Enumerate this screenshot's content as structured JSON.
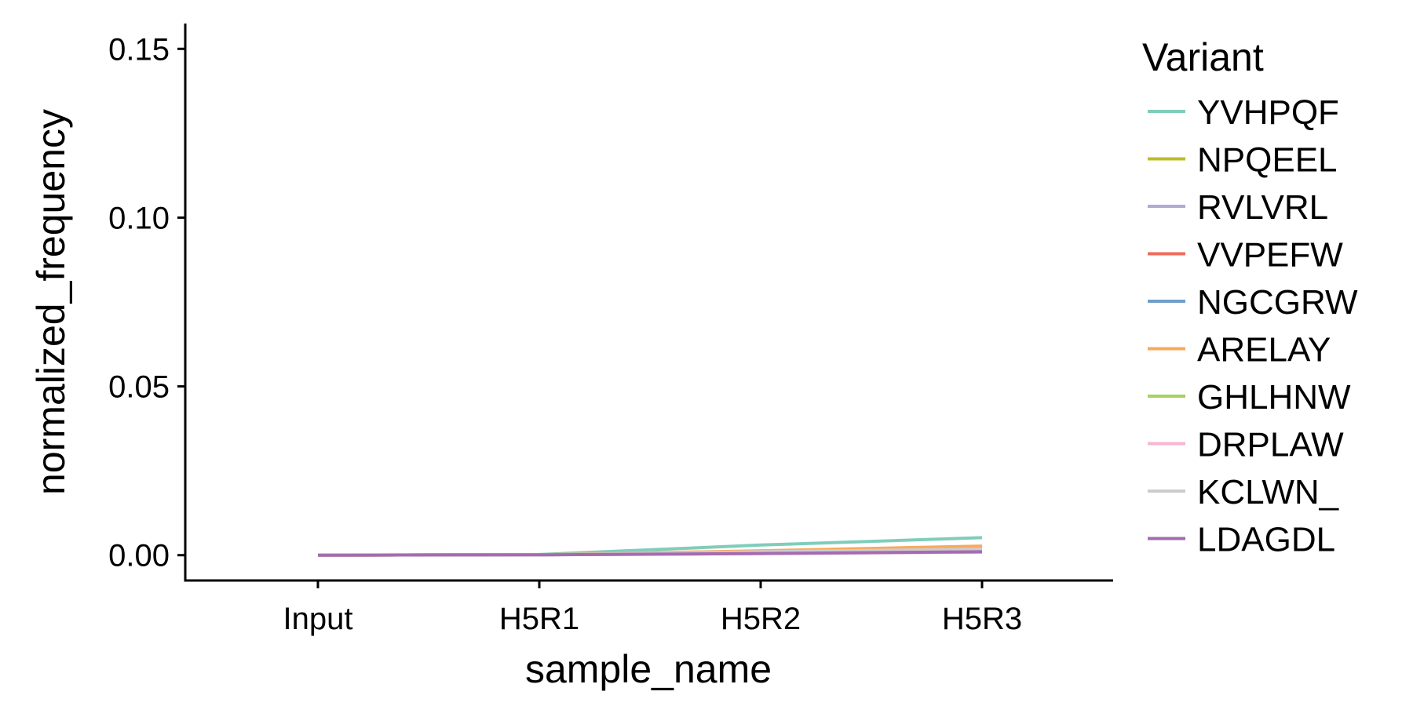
{
  "chart_data": {
    "type": "line",
    "xlabel": "sample_name",
    "ylabel": "normalized_frequency",
    "categories": [
      "Input",
      "H5R1",
      "H5R2",
      "H5R3"
    ],
    "ylim": [
      -0.0075,
      0.1575
    ],
    "yticks": [
      0.0,
      0.05,
      0.1,
      0.15
    ],
    "ytick_labels": [
      "0.00",
      "0.05",
      "0.10",
      "0.15"
    ],
    "grid": false,
    "legend": {
      "title": "Variant",
      "placement": "right"
    },
    "series": [
      {
        "name": "YVHPQF",
        "color": "#7fcdbb",
        "values": [
          0.0,
          0.0002,
          0.003,
          0.0052
        ]
      },
      {
        "name": "NPQEEL",
        "color": "#bcbd22",
        "values": [
          0.0,
          0.0001,
          0.0012,
          0.0025
        ]
      },
      {
        "name": "RVLVRL",
        "color": "#b3a9d4",
        "values": [
          0.0,
          0.0001,
          0.001,
          0.002
        ]
      },
      {
        "name": "VVPEFW",
        "color": "#ef6a5a",
        "values": [
          0.0,
          0.0001,
          0.0008,
          0.0015
        ]
      },
      {
        "name": "NGCGRW",
        "color": "#6f9ec9",
        "values": [
          0.0,
          0.0001,
          0.0007,
          0.0012
        ]
      },
      {
        "name": "ARELAY",
        "color": "#fba85b",
        "values": [
          0.0,
          0.0001,
          0.0013,
          0.0027
        ]
      },
      {
        "name": "GHLHNW",
        "color": "#a5d25e",
        "values": [
          0.0,
          0.0001,
          0.0006,
          0.001
        ]
      },
      {
        "name": "DRPLAW",
        "color": "#f7b6d2",
        "values": [
          0.0,
          0.0001,
          0.0005,
          0.0009
        ]
      },
      {
        "name": "KCLWN_",
        "color": "#cccccc",
        "values": [
          0.0,
          0.0001,
          0.001,
          0.0018
        ]
      },
      {
        "name": "LDAGDL",
        "color": "#a56bb1",
        "values": [
          0.0,
          0.0001,
          0.0005,
          0.001
        ]
      }
    ]
  }
}
